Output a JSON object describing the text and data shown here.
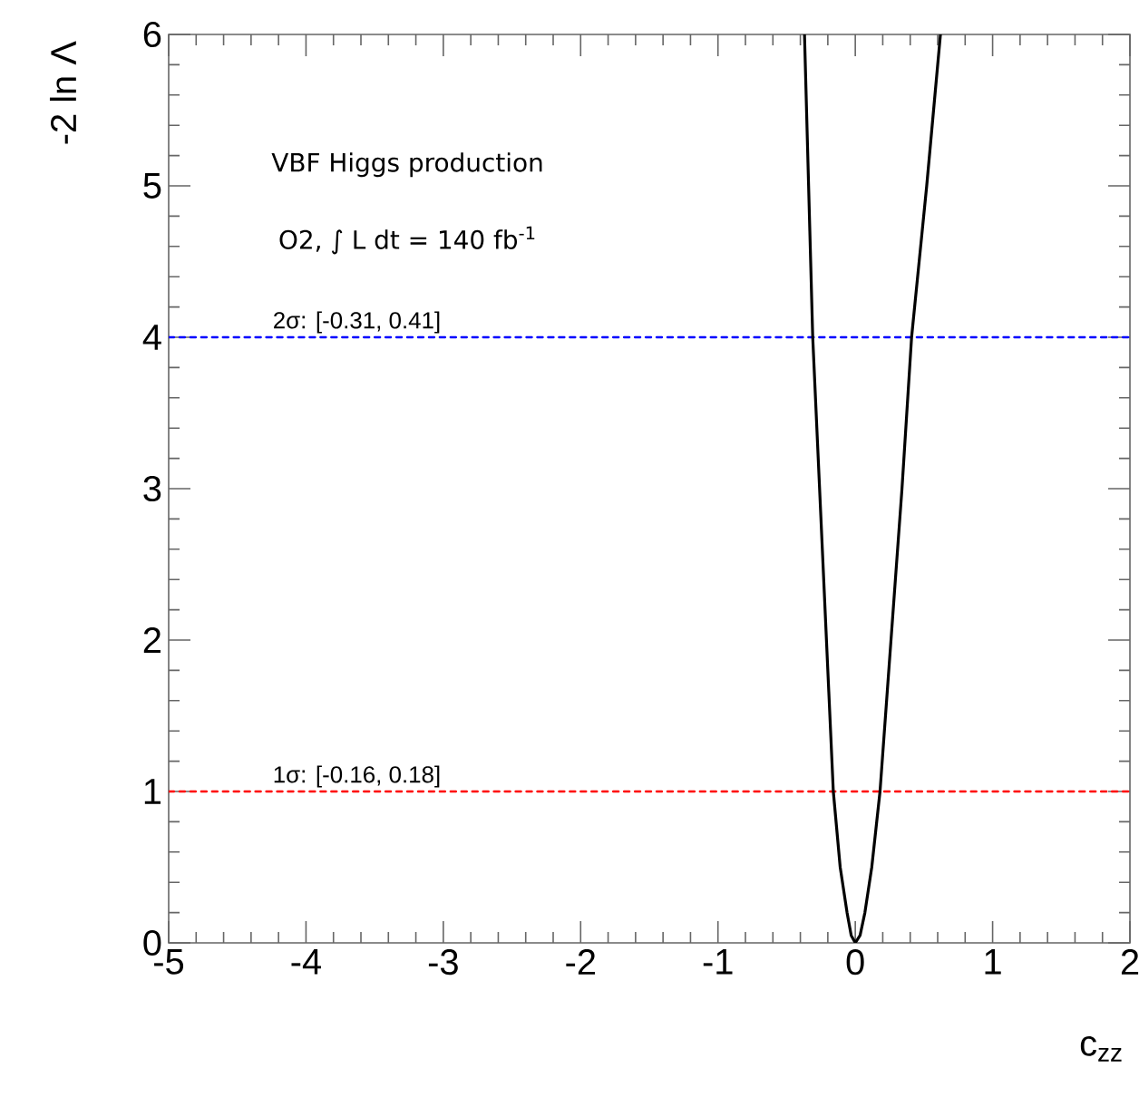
{
  "chart_data": {
    "type": "line",
    "xlabel": "c$_{zz}$",
    "ylabel": "-2 ln Λ",
    "xlim": [
      -5,
      2
    ],
    "ylim": [
      0,
      6
    ],
    "xticks": [
      -5,
      -4,
      -3,
      -2,
      -1,
      0,
      1,
      2
    ],
    "yticks": [
      0,
      1,
      2,
      3,
      4,
      5,
      6
    ],
    "marker": "none",
    "line_style": "solid",
    "series": [
      {
        "color": "#000000",
        "x": [
          -0.37,
          -0.34,
          -0.31,
          -0.26,
          -0.21,
          -0.16,
          -0.11,
          -0.06,
          -0.03,
          0,
          0.035,
          0.07,
          0.12,
          0.18,
          0.26,
          0.34,
          0.41,
          0.52,
          0.62
        ],
        "values": [
          6,
          5,
          4,
          3,
          2,
          1,
          0.5,
          0.2,
          0.05,
          0,
          0.05,
          0.2,
          0.5,
          1,
          2,
          3,
          4,
          5,
          6
        ]
      }
    ],
    "ref_lines": [
      {
        "axis": "y",
        "value": 4,
        "label": "2σ: [-0.31, 0.41]",
        "color": "#0000ff",
        "line_style": "dashed"
      },
      {
        "axis": "y",
        "value": 1,
        "label": "1σ: [-0.16, 0.18]",
        "color": "#ff0000",
        "line_style": "dashed"
      }
    ],
    "annotations": [
      "VBF Higgs production",
      "O2, ∫ L dt = 140 fb$^{-1}$"
    ]
  }
}
